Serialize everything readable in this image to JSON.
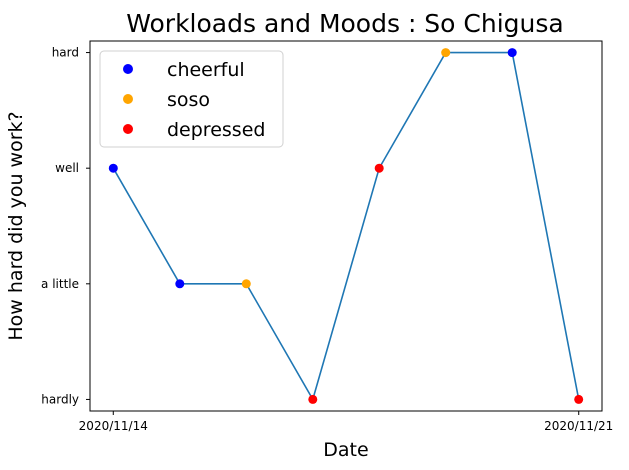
{
  "chart_data": {
    "type": "line",
    "title": "Workloads and Moods : So Chigusa",
    "xlabel": "Date",
    "ylabel": "How hard did you work?",
    "x": [
      "2020/11/14",
      "2020/11/15",
      "2020/11/16",
      "2020/11/17",
      "2020/11/18",
      "2020/11/19",
      "2020/11/20",
      "2020/11/21"
    ],
    "x_tick_labels": [
      "2020/11/14",
      "2020/11/21"
    ],
    "y_categories": [
      "hardly",
      "a little",
      "well",
      "hard"
    ],
    "values": [
      "well",
      "a little",
      "a little",
      "hardly",
      "well",
      "hard",
      "hard",
      "hardly"
    ],
    "moods": [
      "cheerful",
      "cheerful",
      "soso",
      "depressed",
      "depressed",
      "soso",
      "cheerful",
      "depressed"
    ],
    "line_color": "#1f77b4",
    "grid": false,
    "legend_position": "upper left",
    "legend": [
      {
        "name": "cheerful",
        "color": "#0000ff"
      },
      {
        "name": "soso",
        "color": "#ffa500"
      },
      {
        "name": "depressed",
        "color": "#ff0000"
      }
    ]
  }
}
